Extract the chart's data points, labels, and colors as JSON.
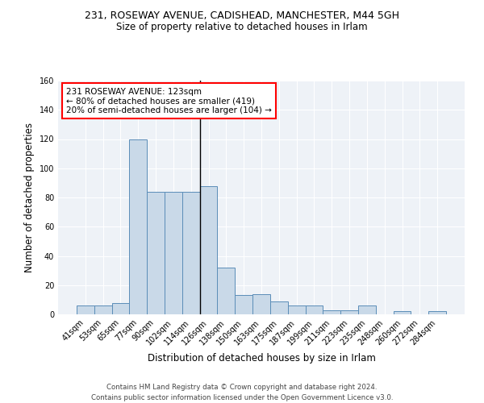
{
  "title1": "231, ROSEWAY AVENUE, CADISHEAD, MANCHESTER, M44 5GH",
  "title2": "Size of property relative to detached houses in Irlam",
  "xlabel": "Distribution of detached houses by size in Irlam",
  "ylabel": "Number of detached properties",
  "bar_labels": [
    "41sqm",
    "53sqm",
    "65sqm",
    "77sqm",
    "90sqm",
    "102sqm",
    "114sqm",
    "126sqm",
    "138sqm",
    "150sqm",
    "163sqm",
    "175sqm",
    "187sqm",
    "199sqm",
    "211sqm",
    "223sqm",
    "235sqm",
    "248sqm",
    "260sqm",
    "272sqm",
    "284sqm"
  ],
  "bar_values": [
    6,
    6,
    8,
    120,
    84,
    84,
    84,
    88,
    32,
    13,
    14,
    9,
    6,
    6,
    3,
    3,
    6,
    0,
    2,
    0,
    2
  ],
  "bar_color": "#c9d9e8",
  "bar_edge_color": "#5b8db8",
  "annotation_text": "231 ROSEWAY AVENUE: 123sqm\n← 80% of detached houses are smaller (419)\n20% of semi-detached houses are larger (104) →",
  "annotation_box_color": "white",
  "annotation_box_edge_color": "red",
  "vline_color": "black",
  "ylim": [
    0,
    160
  ],
  "yticks": [
    0,
    20,
    40,
    60,
    80,
    100,
    120,
    140,
    160
  ],
  "footer": "Contains HM Land Registry data © Crown copyright and database right 2024.\nContains public sector information licensed under the Open Government Licence v3.0.",
  "bg_color": "#eef2f7"
}
